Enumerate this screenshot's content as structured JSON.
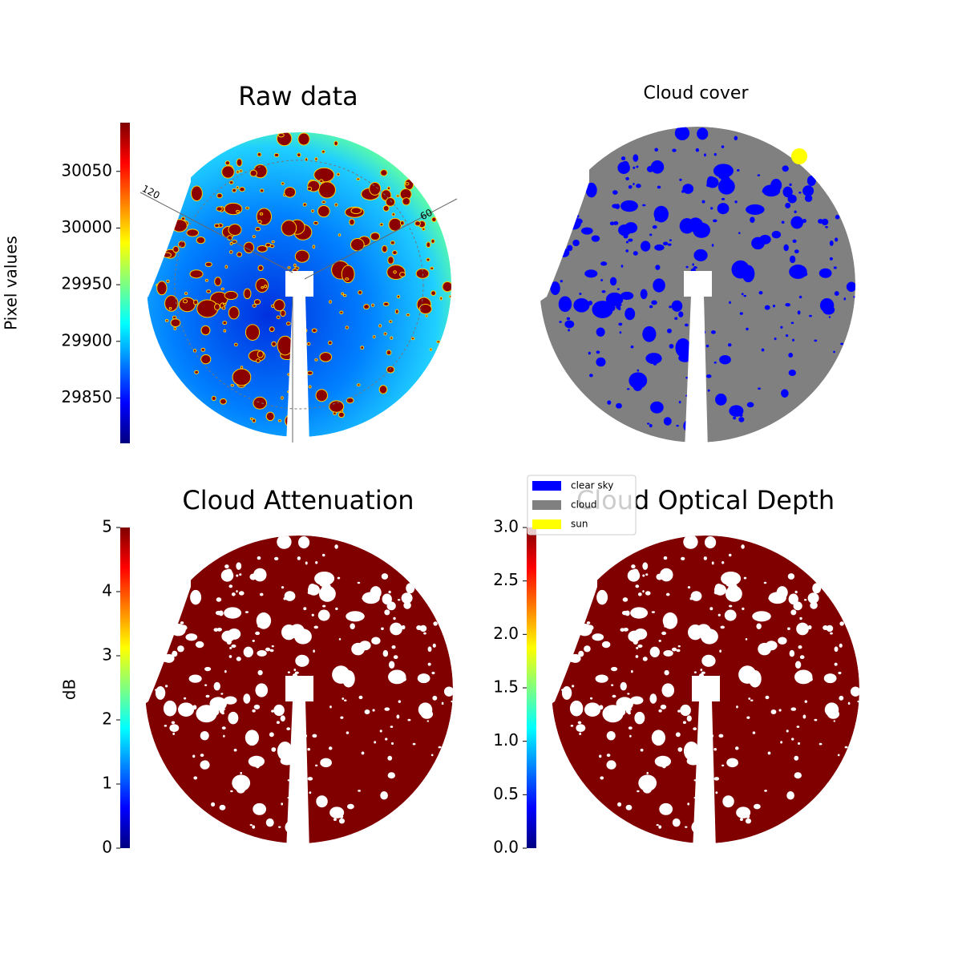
{
  "chart_data": [
    {
      "type": "image",
      "title": "Raw data",
      "polar_labels": [
        "120",
        "60"
      ],
      "colorbar": {
        "label": "Pixel values",
        "colormap": "jet",
        "lim": [
          29810,
          30093
        ],
        "ticks": [
          29850,
          29900,
          29950,
          30000,
          30050
        ]
      }
    },
    {
      "type": "image",
      "title": "Cloud cover",
      "legend": [
        {
          "name": "clear sky",
          "color": "#0000ff"
        },
        {
          "name": "cloud",
          "color": "#808080"
        },
        {
          "name": "sun",
          "color": "#ffff00"
        }
      ]
    },
    {
      "type": "image",
      "title": "Cloud Attenuation",
      "colorbar": {
        "label": "dB",
        "colormap": "jet",
        "lim": [
          0,
          5
        ],
        "ticks": [
          0,
          1,
          2,
          3,
          4,
          5
        ]
      }
    },
    {
      "type": "image",
      "title": "Cloud Optical Depth",
      "colorbar": {
        "colormap": "jet",
        "lim": [
          0,
          3
        ],
        "ticks": [
          {
            "value": 0,
            "label": "0.0"
          },
          {
            "value": 0.5,
            "label": "0.5"
          },
          {
            "value": 1,
            "label": "1.0"
          },
          {
            "value": 1.5,
            "label": "1.5"
          },
          {
            "value": 2,
            "label": "2.0"
          },
          {
            "value": 2.5,
            "label": "2.5"
          },
          {
            "value": 3,
            "label": "3.0"
          }
        ]
      }
    }
  ]
}
